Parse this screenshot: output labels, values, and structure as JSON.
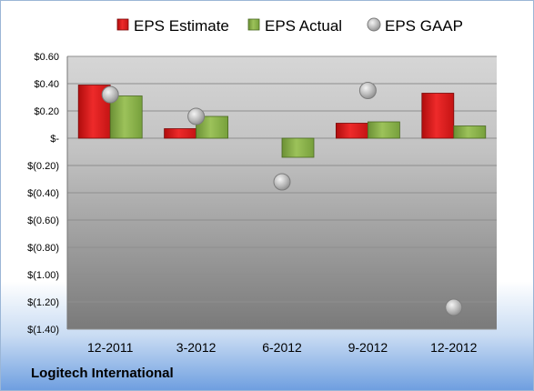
{
  "chart_data": {
    "type": "bar",
    "title": "",
    "xlabel": "",
    "ylabel": "",
    "categories": [
      "12-2011",
      "3-2012",
      "6-2012",
      "9-2012",
      "12-2012"
    ],
    "ylim": [
      -1.4,
      0.6
    ],
    "yticks": [
      0.6,
      0.4,
      0.2,
      0.0,
      -0.2,
      -0.4,
      -0.6,
      -0.8,
      -1.0,
      -1.2,
      -1.4
    ],
    "ytick_labels": [
      "$0.60",
      "$0.40",
      "$0.20",
      "$-",
      "$(0.20)",
      "$(0.40)",
      "$(0.60)",
      "$(0.80)",
      "$(1.00)",
      "$(1.20)",
      "$(1.40)"
    ],
    "grid": true,
    "legend_position": "top",
    "series": [
      {
        "name": "EPS Estimate",
        "kind": "bar",
        "color": "#e02020",
        "values": [
          0.39,
          0.07,
          0.0,
          0.11,
          0.33
        ]
      },
      {
        "name": "EPS Actual",
        "kind": "bar",
        "color": "#8ab04a",
        "values": [
          0.31,
          0.16,
          -0.14,
          0.12,
          0.09
        ]
      },
      {
        "name": "EPS GAAP",
        "kind": "scatter",
        "color": "#b8b8b8",
        "values": [
          0.32,
          0.16,
          -0.32,
          0.35,
          -1.24
        ]
      }
    ]
  },
  "footer": {
    "company": "Logitech International"
  }
}
